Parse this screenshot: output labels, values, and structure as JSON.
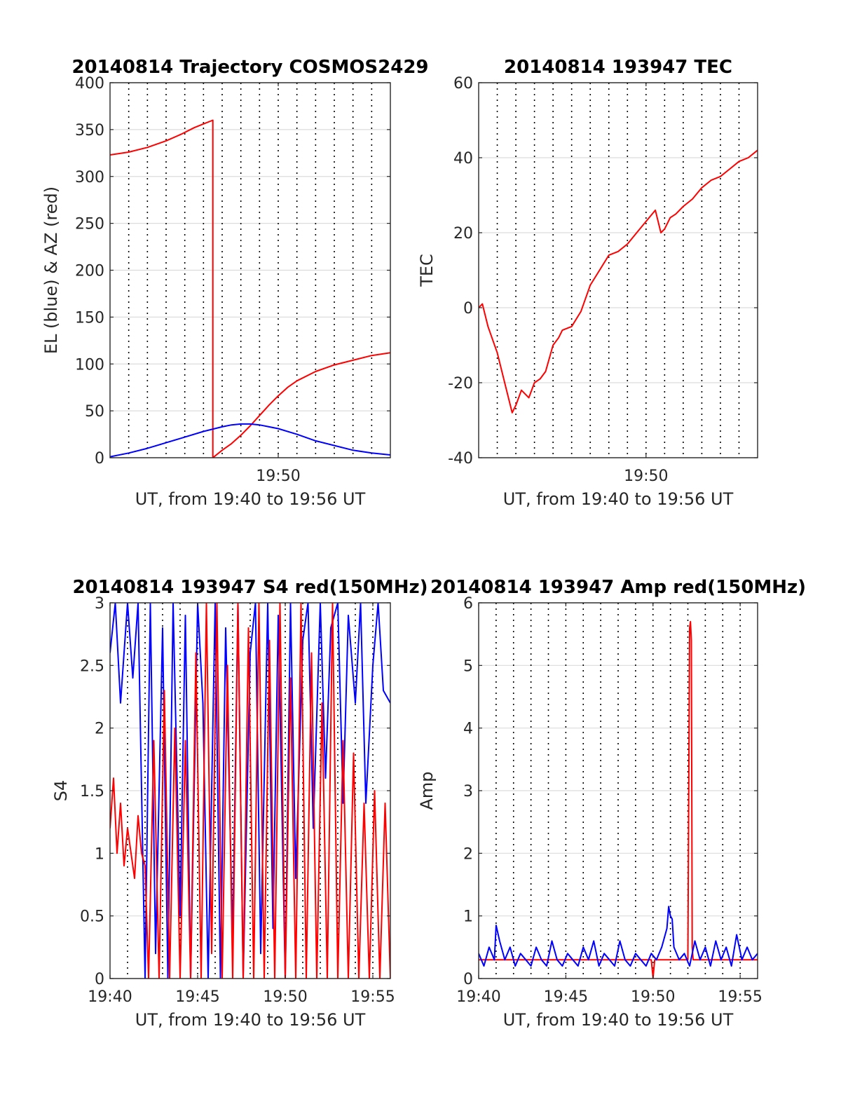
{
  "chart_data": [
    {
      "type": "line",
      "title": "20140814 Trajectory COSMOS2429",
      "xlabel": "UT, from 19:40 to 19:56 UT",
      "ylabel": "EL (blue) & AZ (red)",
      "xlim": [
        41,
        56
      ],
      "ylim": [
        0,
        400
      ],
      "xticks": [
        {
          "v": 50,
          "label": "19:50"
        }
      ],
      "yticks": [
        {
          "v": 0,
          "label": "0"
        },
        {
          "v": 50,
          "label": "50"
        },
        {
          "v": 100,
          "label": "100"
        },
        {
          "v": 150,
          "label": "150"
        },
        {
          "v": 200,
          "label": "200"
        },
        {
          "v": 250,
          "label": "250"
        },
        {
          "v": 300,
          "label": "300"
        },
        {
          "v": 350,
          "label": "350"
        },
        {
          "v": 400,
          "label": "400"
        }
      ],
      "grid": {
        "vertical_dotted": true,
        "horizontal": true
      },
      "series": [
        {
          "color": "#ff0000",
          "x": [
            41,
            42,
            43,
            44,
            44.8,
            45.5,
            46,
            46.5,
            46.5,
            47,
            47.5,
            48,
            48.5,
            49,
            49.5,
            50,
            50.5,
            51,
            52,
            53,
            54,
            55,
            56
          ],
          "y": [
            323,
            326,
            331,
            338,
            345,
            352,
            356,
            360,
            0,
            8,
            15,
            24,
            34,
            45,
            56,
            66,
            75,
            82,
            92,
            99,
            104,
            109,
            112
          ]
        },
        {
          "color": "#0000ff",
          "x": [
            41,
            42,
            43,
            44,
            45,
            46,
            47,
            47.5,
            48,
            48.5,
            49,
            50,
            51,
            52,
            53,
            54,
            55,
            56
          ],
          "y": [
            1,
            5,
            10,
            16,
            22,
            28,
            33,
            35,
            36,
            36,
            35,
            31,
            25,
            18,
            13,
            8,
            5,
            3
          ]
        }
      ]
    },
    {
      "type": "line",
      "title": "20140814 193947 TEC",
      "xlabel": "UT, from 19:40 to 19:56 UT",
      "ylabel": "TEC",
      "xlim": [
        41,
        56
      ],
      "ylim": [
        -40,
        60
      ],
      "xticks": [
        {
          "v": 50,
          "label": "19:50"
        }
      ],
      "yticks": [
        {
          "v": -40,
          "label": "-40"
        },
        {
          "v": -20,
          "label": "-20"
        },
        {
          "v": 0,
          "label": "0"
        },
        {
          "v": 20,
          "label": "20"
        },
        {
          "v": 40,
          "label": "40"
        },
        {
          "v": 60,
          "label": "60"
        }
      ],
      "grid": {
        "vertical_dotted": true,
        "horizontal": true
      },
      "series": [
        {
          "color": "#ff0000",
          "x": [
            41,
            41.2,
            41.5,
            42,
            42.5,
            42.8,
            43,
            43.3,
            43.7,
            44,
            44.3,
            44.6,
            45,
            45.3,
            45.5,
            46,
            46.5,
            47,
            47.5,
            48,
            48.5,
            49,
            49.5,
            50,
            50.5,
            50.8,
            51,
            51.3,
            51.6,
            52,
            52.5,
            53,
            53.5,
            54,
            54.5,
            55,
            55.5,
            56
          ],
          "y": [
            0,
            1,
            -5,
            -12,
            -22,
            -28,
            -26,
            -22,
            -24,
            -20,
            -19,
            -17,
            -10,
            -8,
            -6,
            -5,
            -1,
            6,
            10,
            14,
            15,
            17,
            20,
            23,
            26,
            20,
            21,
            24,
            25,
            27,
            29,
            32,
            34,
            35,
            37,
            39,
            40,
            42
          ]
        }
      ]
    },
    {
      "type": "line",
      "title": "20140814 193947 S4 red(150MHz)",
      "xlabel": "UT, from 19:40 to 19:56 UT",
      "ylabel": "S4",
      "xlim": [
        40,
        56
      ],
      "ylim": [
        0,
        3
      ],
      "xticks": [
        {
          "v": 40,
          "label": "19:40"
        },
        {
          "v": 45,
          "label": "19:45"
        },
        {
          "v": 50,
          "label": "19:50"
        },
        {
          "v": 55,
          "label": "19:55"
        }
      ],
      "yticks": [
        {
          "v": 0,
          "label": "0"
        },
        {
          "v": 0.5,
          "label": "0.5"
        },
        {
          "v": 1,
          "label": "1"
        },
        {
          "v": 1.5,
          "label": "1.5"
        },
        {
          "v": 2,
          "label": "2"
        },
        {
          "v": 2.5,
          "label": "2.5"
        },
        {
          "v": 3,
          "label": "3"
        }
      ],
      "grid": {
        "vertical_dotted": true,
        "horizontal": true
      },
      "series": [
        {
          "color": "#0000ff",
          "x": [
            40,
            40.3,
            40.6,
            41,
            41.3,
            41.6,
            42,
            42.3,
            42.6,
            43,
            43.3,
            43.6,
            44,
            44.3,
            44.6,
            45,
            45.3,
            45.6,
            46,
            46.3,
            46.6,
            47,
            47.3,
            47.6,
            48,
            48.3,
            48.6,
            49,
            49.3,
            49.6,
            50,
            50.3,
            50.6,
            51,
            51.3,
            51.6,
            52,
            52.3,
            52.6,
            53,
            53.3,
            53.6,
            54,
            54.3,
            54.6,
            55,
            55.3,
            55.6,
            56
          ],
          "y": [
            2.6,
            3,
            2.2,
            3,
            2.4,
            3,
            0,
            3,
            0.2,
            2.8,
            0,
            3,
            0.5,
            2.9,
            0,
            3,
            2.2,
            0,
            3,
            0,
            2.8,
            0.3,
            3,
            0,
            2.6,
            3,
            0.2,
            3,
            0.4,
            2.9,
            0,
            3,
            0.8,
            2.7,
            3,
            1.2,
            3,
            1.6,
            2.8,
            3,
            1.4,
            2.9,
            2.2,
            3,
            1.4,
            2.5,
            3,
            2.3,
            2.2
          ]
        },
        {
          "color": "#ff0000",
          "x": [
            40,
            40.2,
            40.4,
            40.6,
            40.8,
            41,
            41.2,
            41.4,
            41.6,
            41.8,
            42,
            42.2,
            42.5,
            42.8,
            43.1,
            43.4,
            43.7,
            44,
            44.3,
            44.6,
            44.9,
            45.2,
            45.5,
            45.8,
            46.1,
            46.4,
            46.7,
            47,
            47.3,
            47.6,
            47.9,
            48.2,
            48.5,
            48.8,
            49.1,
            49.4,
            49.7,
            50,
            50.3,
            50.6,
            50.9,
            51.2,
            51.5,
            51.8,
            52.1,
            52.4,
            52.7,
            53,
            53.3,
            53.6,
            53.9,
            54.2,
            54.5,
            54.8,
            55.1,
            55.4,
            55.7,
            56
          ],
          "y": [
            1.2,
            1.6,
            1.0,
            1.4,
            0.9,
            1.2,
            1.0,
            0.8,
            1.3,
            1.0,
            0.9,
            0,
            1.9,
            0,
            2.3,
            0,
            2.0,
            0,
            1.9,
            0,
            2.6,
            0,
            3,
            0.2,
            3,
            0,
            2.5,
            0,
            3,
            0,
            2.8,
            0,
            3,
            0,
            2.7,
            0,
            3,
            0,
            2.4,
            0,
            3,
            0,
            2.6,
            0,
            2.2,
            0,
            3,
            0,
            1.9,
            0,
            1.8,
            0,
            1.4,
            0,
            1.5,
            0,
            1.4,
            0
          ]
        }
      ]
    },
    {
      "type": "line",
      "title": "20140814 193947 Amp red(150MHz)",
      "xlabel": "UT, from 19:40 to 19:56 UT",
      "ylabel": "Amp",
      "xlim": [
        40,
        56
      ],
      "ylim": [
        0,
        6
      ],
      "xticks": [
        {
          "v": 40,
          "label": "19:40"
        },
        {
          "v": 45,
          "label": "19:45"
        },
        {
          "v": 50,
          "label": "19:50"
        },
        {
          "v": 55,
          "label": "19:55"
        }
      ],
      "yticks": [
        {
          "v": 0,
          "label": "0"
        },
        {
          "v": 1,
          "label": "1"
        },
        {
          "v": 2,
          "label": "2"
        },
        {
          "v": 3,
          "label": "3"
        },
        {
          "v": 4,
          "label": "4"
        },
        {
          "v": 5,
          "label": "5"
        },
        {
          "v": 6,
          "label": "6"
        }
      ],
      "grid": {
        "vertical_dotted": true,
        "horizontal": true
      },
      "series": [
        {
          "color": "#ff0000",
          "x": [
            40,
            49.9,
            50.0,
            50.1,
            52.0,
            52.1,
            52.15,
            52.2,
            52.25,
            52.3,
            56
          ],
          "y": [
            0.3,
            0.3,
            0.01,
            0.3,
            0.3,
            5.6,
            5.7,
            5.4,
            0.5,
            0.3,
            0.3
          ]
        },
        {
          "color": "#0000ff",
          "x": [
            40,
            40.3,
            40.6,
            40.9,
            41.0,
            41.2,
            41.5,
            41.8,
            42.1,
            42.4,
            42.7,
            43.0,
            43.3,
            43.6,
            43.9,
            44.2,
            44.5,
            44.8,
            45.1,
            45.4,
            45.7,
            46.0,
            46.3,
            46.6,
            46.9,
            47.2,
            47.5,
            47.8,
            48.1,
            48.4,
            48.7,
            49.0,
            49.3,
            49.6,
            49.9,
            50.2,
            50.5,
            50.8,
            50.9,
            51.0,
            51.1,
            51.2,
            51.5,
            51.8,
            52.1,
            52.4,
            52.7,
            53.0,
            53.3,
            53.6,
            53.9,
            54.2,
            54.5,
            54.8,
            55.1,
            55.4,
            55.7,
            56
          ],
          "y": [
            0.4,
            0.2,
            0.5,
            0.3,
            0.85,
            0.6,
            0.3,
            0.5,
            0.2,
            0.4,
            0.3,
            0.2,
            0.5,
            0.3,
            0.2,
            0.6,
            0.3,
            0.2,
            0.4,
            0.3,
            0.2,
            0.5,
            0.3,
            0.6,
            0.2,
            0.4,
            0.3,
            0.2,
            0.6,
            0.3,
            0.2,
            0.4,
            0.3,
            0.2,
            0.4,
            0.3,
            0.5,
            0.8,
            1.15,
            1.0,
            0.95,
            0.5,
            0.3,
            0.4,
            0.2,
            0.6,
            0.3,
            0.5,
            0.2,
            0.6,
            0.3,
            0.5,
            0.2,
            0.7,
            0.3,
            0.5,
            0.3,
            0.4
          ]
        }
      ]
    }
  ]
}
